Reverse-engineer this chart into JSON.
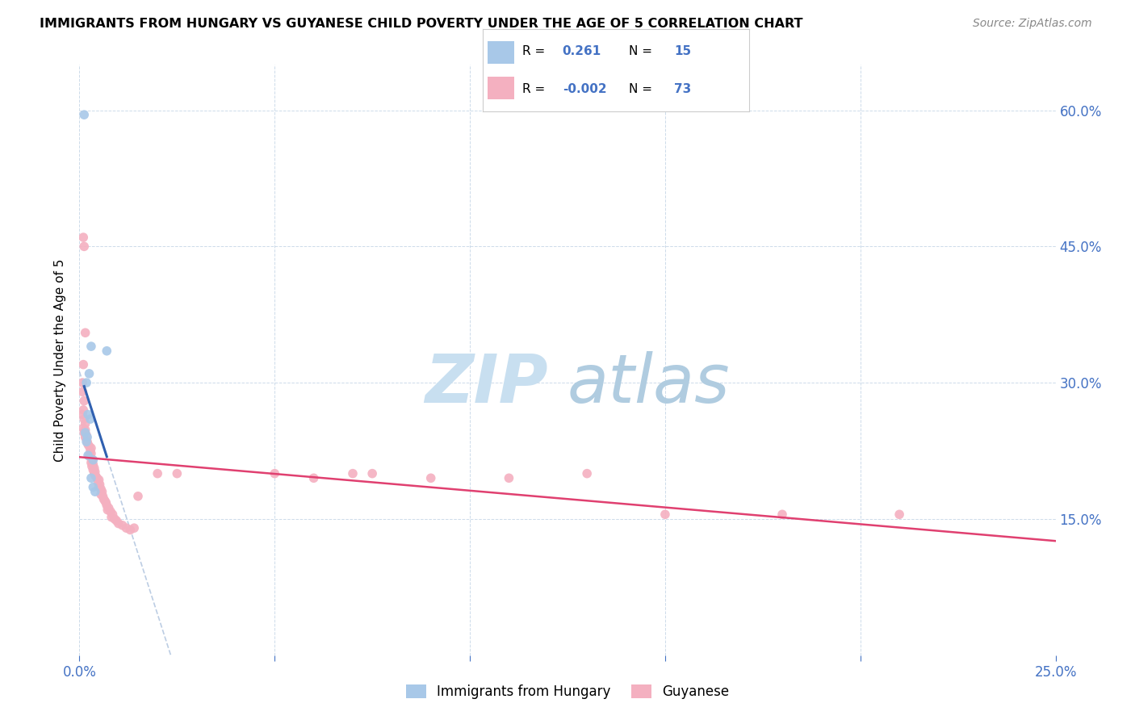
{
  "title": "IMMIGRANTS FROM HUNGARY VS GUYANESE CHILD POVERTY UNDER THE AGE OF 5 CORRELATION CHART",
  "source": "Source: ZipAtlas.com",
  "ylabel": "Child Poverty Under the Age of 5",
  "xlim": [
    0.0,
    0.25
  ],
  "ylim": [
    0.0,
    0.65
  ],
  "hungary_color": "#a8c8e8",
  "guyanese_color": "#f4b0c0",
  "hungary_trend_color": "#3060b0",
  "guyanese_trend_color": "#e04070",
  "hungary_dashed_color": "#a0b8d8",
  "watermark_zip_color": "#c8dff0",
  "watermark_atlas_color": "#b0cce0",
  "hungary_scatter": [
    [
      0.0012,
      0.595
    ],
    [
      0.007,
      0.335
    ],
    [
      0.003,
      0.34
    ],
    [
      0.0025,
      0.31
    ],
    [
      0.0018,
      0.3
    ],
    [
      0.0022,
      0.265
    ],
    [
      0.0028,
      0.26
    ],
    [
      0.0015,
      0.245
    ],
    [
      0.002,
      0.24
    ],
    [
      0.0018,
      0.235
    ],
    [
      0.0022,
      0.22
    ],
    [
      0.0035,
      0.215
    ],
    [
      0.003,
      0.195
    ],
    [
      0.0035,
      0.185
    ],
    [
      0.004,
      0.18
    ]
  ],
  "guyanese_scatter": [
    [
      0.0008,
      0.29
    ],
    [
      0.001,
      0.46
    ],
    [
      0.0012,
      0.45
    ],
    [
      0.0015,
      0.355
    ],
    [
      0.001,
      0.32
    ],
    [
      0.0008,
      0.3
    ],
    [
      0.0012,
      0.28
    ],
    [
      0.001,
      0.27
    ],
    [
      0.0008,
      0.265
    ],
    [
      0.0012,
      0.26
    ],
    [
      0.0015,
      0.255
    ],
    [
      0.001,
      0.25
    ],
    [
      0.0015,
      0.248
    ],
    [
      0.0012,
      0.245
    ],
    [
      0.0018,
      0.242
    ],
    [
      0.0015,
      0.24
    ],
    [
      0.0018,
      0.238
    ],
    [
      0.002,
      0.235
    ],
    [
      0.0022,
      0.232
    ],
    [
      0.0025,
      0.23
    ],
    [
      0.003,
      0.228
    ],
    [
      0.0028,
      0.225
    ],
    [
      0.003,
      0.222
    ],
    [
      0.0025,
      0.22
    ],
    [
      0.0028,
      0.218
    ],
    [
      0.0032,
      0.215
    ],
    [
      0.003,
      0.212
    ],
    [
      0.0035,
      0.21
    ],
    [
      0.0032,
      0.208
    ],
    [
      0.0038,
      0.206
    ],
    [
      0.0035,
      0.204
    ],
    [
      0.004,
      0.202
    ],
    [
      0.0038,
      0.2
    ],
    [
      0.004,
      0.198
    ],
    [
      0.0042,
      0.197
    ],
    [
      0.0045,
      0.195
    ],
    [
      0.005,
      0.193
    ],
    [
      0.0048,
      0.19
    ],
    [
      0.0052,
      0.188
    ],
    [
      0.005,
      0.185
    ],
    [
      0.0055,
      0.183
    ],
    [
      0.0058,
      0.18
    ],
    [
      0.0055,
      0.177
    ],
    [
      0.006,
      0.175
    ],
    [
      0.0062,
      0.172
    ],
    [
      0.0065,
      0.17
    ],
    [
      0.0068,
      0.168
    ],
    [
      0.007,
      0.165
    ],
    [
      0.0075,
      0.162
    ],
    [
      0.0072,
      0.16
    ],
    [
      0.008,
      0.158
    ],
    [
      0.0085,
      0.155
    ],
    [
      0.0082,
      0.152
    ],
    [
      0.009,
      0.15
    ],
    [
      0.0095,
      0.148
    ],
    [
      0.01,
      0.145
    ],
    [
      0.011,
      0.143
    ],
    [
      0.012,
      0.14
    ],
    [
      0.013,
      0.138
    ],
    [
      0.014,
      0.14
    ],
    [
      0.015,
      0.175
    ],
    [
      0.02,
      0.2
    ],
    [
      0.025,
      0.2
    ],
    [
      0.05,
      0.2
    ],
    [
      0.06,
      0.195
    ],
    [
      0.07,
      0.2
    ],
    [
      0.075,
      0.2
    ],
    [
      0.09,
      0.195
    ],
    [
      0.11,
      0.195
    ],
    [
      0.13,
      0.2
    ],
    [
      0.15,
      0.155
    ],
    [
      0.18,
      0.155
    ],
    [
      0.21,
      0.155
    ]
  ]
}
